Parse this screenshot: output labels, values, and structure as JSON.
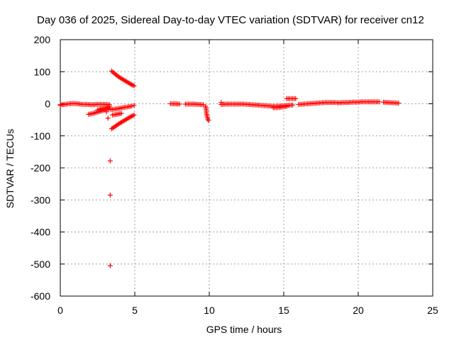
{
  "chart_data": {
    "type": "scatter",
    "title": "Day 036 of 2025, Sidereal Day-to-day VTEC variation (SDTVAR) for receiver cn12",
    "xlabel": "GPS time / hours",
    "ylabel": "SDTVAR / TECUs",
    "xlim": [
      0,
      25
    ],
    "ylim": [
      -600,
      200
    ],
    "xticks": [
      0,
      5,
      10,
      15,
      20,
      25
    ],
    "yticks": [
      200,
      100,
      0,
      -100,
      -200,
      -300,
      -400,
      -500,
      -600
    ],
    "grid": true,
    "marker": "+",
    "series": [
      {
        "name": "SDTVAR",
        "color": "#ff0000",
        "segments": [
          [
            [
              0.0,
              -3
            ],
            [
              0.3,
              -2
            ],
            [
              0.6,
              0
            ],
            [
              0.9,
              1
            ],
            [
              1.2,
              0
            ],
            [
              1.5,
              -2
            ],
            [
              1.8,
              -2
            ],
            [
              2.1,
              -3
            ],
            [
              2.4,
              -2
            ],
            [
              2.7,
              -2
            ],
            [
              3.0,
              -2
            ],
            [
              3.3,
              -3
            ]
          ],
          [
            [
              1.9,
              -33
            ],
            [
              2.2,
              -30
            ],
            [
              2.5,
              -26
            ],
            [
              2.8,
              -22
            ],
            [
              3.1,
              -18
            ],
            [
              3.3,
              -15
            ]
          ],
          [
            [
              2.5,
              -20
            ],
            [
              2.8,
              -15
            ],
            [
              3.1,
              -12
            ],
            [
              3.3,
              -8
            ]
          ],
          [
            [
              3.4,
              -18
            ],
            [
              3.6,
              -17
            ],
            [
              3.9,
              -15
            ],
            [
              4.2,
              -12
            ],
            [
              4.5,
              -10
            ],
            [
              4.8,
              -7
            ],
            [
              4.95,
              -5
            ]
          ],
          [
            [
              3.5,
              -35
            ],
            [
              3.8,
              -33
            ],
            [
              4.1,
              -30
            ]
          ],
          [
            [
              3.45,
              102
            ],
            [
              3.7,
              92
            ],
            [
              3.95,
              83
            ],
            [
              4.2,
              76
            ],
            [
              4.45,
              69
            ],
            [
              4.7,
              62
            ],
            [
              4.95,
              56
            ]
          ],
          [
            [
              3.45,
              -78
            ],
            [
              3.7,
              -70
            ],
            [
              3.95,
              -62
            ],
            [
              4.2,
              -55
            ],
            [
              4.45,
              -48
            ],
            [
              4.7,
              -41
            ],
            [
              4.95,
              -35
            ]
          ],
          [
            [
              7.4,
              0
            ],
            [
              7.7,
              0
            ],
            [
              8.0,
              -1
            ]
          ],
          [
            [
              8.4,
              -1
            ],
            [
              8.7,
              -1
            ],
            [
              9.0,
              -1
            ],
            [
              9.3,
              -2
            ],
            [
              9.6,
              -3
            ]
          ],
          [
            [
              9.75,
              -8
            ],
            [
              9.8,
              -18
            ],
            [
              9.8,
              -28
            ],
            [
              9.85,
              -38
            ],
            [
              9.9,
              -48
            ],
            [
              9.95,
              -52
            ]
          ],
          [
            [
              10.8,
              -2
            ],
            [
              11.1,
              -1
            ],
            [
              11.4,
              -1
            ],
            [
              11.7,
              -1
            ],
            [
              12.0,
              -1
            ],
            [
              12.3,
              -1
            ],
            [
              12.6,
              -2
            ],
            [
              12.9,
              -3
            ],
            [
              13.2,
              -4
            ],
            [
              13.5,
              -5
            ],
            [
              13.8,
              -6
            ],
            [
              14.1,
              -7
            ],
            [
              14.4,
              -8
            ],
            [
              14.7,
              -7
            ],
            [
              15.0,
              -6
            ],
            [
              15.3,
              -5
            ],
            [
              15.6,
              -4
            ]
          ],
          [
            [
              14.3,
              -12
            ],
            [
              14.6,
              -12
            ],
            [
              14.9,
              -10
            ],
            [
              15.2,
              -8
            ]
          ],
          [
            [
              15.2,
              16
            ],
            [
              15.5,
              16
            ],
            [
              15.8,
              16
            ]
          ],
          [
            [
              16.0,
              -2
            ],
            [
              16.3,
              -1
            ],
            [
              16.6,
              0
            ],
            [
              16.9,
              1
            ],
            [
              17.2,
              2
            ],
            [
              17.5,
              3
            ],
            [
              17.8,
              4
            ],
            [
              18.1,
              4
            ],
            [
              18.4,
              4
            ],
            [
              18.7,
              3
            ],
            [
              19.0,
              4
            ],
            [
              19.3,
              4
            ],
            [
              19.6,
              5
            ],
            [
              19.9,
              5
            ],
            [
              20.2,
              6
            ],
            [
              20.5,
              6
            ],
            [
              20.8,
              6
            ],
            [
              21.1,
              6
            ],
            [
              21.4,
              6
            ]
          ],
          [
            [
              21.7,
              5
            ],
            [
              22.0,
              4
            ],
            [
              22.4,
              3
            ],
            [
              22.7,
              2
            ]
          ]
        ],
        "isolated_points": [
          [
            0.0,
            -5
          ],
          [
            3.35,
            -178
          ],
          [
            3.35,
            -285
          ],
          [
            3.35,
            -505
          ],
          [
            10.8,
            4
          ],
          [
            3.1,
            -25
          ],
          [
            3.2,
            -45
          ]
        ]
      }
    ]
  }
}
